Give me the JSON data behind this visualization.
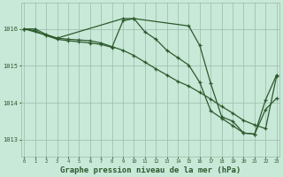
{
  "background_color": "#c8e8d8",
  "grid_color": "#99bbaa",
  "line_color": "#2d5a2d",
  "title": "Graphe pression niveau de la mer (hPa)",
  "title_fontsize": 6.5,
  "title_color": "#2d5a2d",
  "tick_color": "#2d5a2d",
  "ylabel_ticks": [
    1013,
    1014,
    1015,
    1016
  ],
  "xticks": [
    0,
    1,
    2,
    3,
    4,
    5,
    6,
    7,
    8,
    9,
    10,
    11,
    12,
    13,
    14,
    15,
    16,
    17,
    18,
    19,
    20,
    21,
    22,
    23
  ],
  "xlim": [
    -0.3,
    23.3
  ],
  "ylim": [
    1012.55,
    1016.7
  ],
  "series1_x": [
    0,
    1,
    2,
    3,
    4,
    5,
    6,
    7,
    8,
    9,
    10,
    11,
    12,
    13,
    14,
    15,
    16,
    17,
    18,
    19,
    20,
    21,
    22,
    23
  ],
  "series1_y": [
    1016.0,
    1016.0,
    1015.85,
    1015.75,
    1015.72,
    1015.7,
    1015.68,
    1015.62,
    1015.52,
    1015.42,
    1015.28,
    1015.1,
    1014.92,
    1014.75,
    1014.58,
    1014.45,
    1014.28,
    1014.1,
    1013.9,
    1013.72,
    1013.52,
    1013.4,
    1013.3,
    1014.72
  ],
  "series2_x": [
    0,
    1,
    2,
    3,
    4,
    5,
    6,
    7,
    8,
    9,
    10,
    11,
    12,
    13,
    14,
    15,
    16,
    17,
    18,
    19,
    20,
    21,
    22,
    23
  ],
  "series2_y": [
    1016.0,
    1015.95,
    1015.82,
    1015.72,
    1015.68,
    1015.65,
    1015.62,
    1015.58,
    1015.5,
    1016.22,
    1016.28,
    1015.92,
    1015.72,
    1015.42,
    1015.22,
    1015.02,
    1014.55,
    1013.78,
    1013.58,
    1013.38,
    1013.18,
    1013.15,
    1013.82,
    1014.12
  ],
  "series3_x": [
    0,
    3,
    9,
    10,
    15,
    16,
    17,
    18,
    19,
    20,
    21,
    22,
    23
  ],
  "series3_y": [
    1016.0,
    1015.75,
    1016.28,
    1016.28,
    1016.08,
    1015.55,
    1014.52,
    1013.62,
    1013.5,
    1013.18,
    1013.15,
    1014.08,
    1014.75
  ]
}
